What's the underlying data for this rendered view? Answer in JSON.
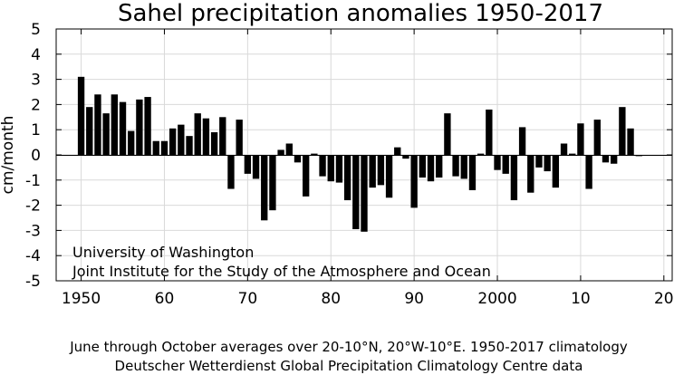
{
  "chart_data": {
    "type": "bar",
    "title": "Sahel precipitation anomalies 1950-2017",
    "ylabel": "cm/month",
    "xlabel": "",
    "xlim": [
      1947,
      2021
    ],
    "ylim": [
      -5,
      5
    ],
    "grid": true,
    "y_ticks": [
      -5,
      -4,
      -3,
      -2,
      -1,
      0,
      1,
      2,
      3,
      4,
      5
    ],
    "y_tick_labels": [
      "-5",
      "-4",
      "-3",
      "-2",
      "-1",
      "0",
      "1",
      "2",
      "3",
      "4",
      "5"
    ],
    "x_ticks": [
      1950,
      1960,
      1970,
      1980,
      1990,
      2000,
      2010,
      2020
    ],
    "x_tick_labels": [
      "1950",
      "60",
      "70",
      "80",
      "90",
      "2000",
      "10",
      "20"
    ],
    "bar_color": "#000000",
    "x": [
      1950,
      1951,
      1952,
      1953,
      1954,
      1955,
      1956,
      1957,
      1958,
      1959,
      1960,
      1961,
      1962,
      1963,
      1964,
      1965,
      1966,
      1967,
      1968,
      1969,
      1970,
      1971,
      1972,
      1973,
      1974,
      1975,
      1976,
      1977,
      1978,
      1979,
      1980,
      1981,
      1982,
      1983,
      1984,
      1985,
      1986,
      1987,
      1988,
      1989,
      1990,
      1991,
      1992,
      1993,
      1994,
      1995,
      1996,
      1997,
      1998,
      1999,
      2000,
      2001,
      2002,
      2003,
      2004,
      2005,
      2006,
      2007,
      2008,
      2009,
      2010,
      2011,
      2012,
      2013,
      2014,
      2015,
      2016,
      2017
    ],
    "values": [
      3.1,
      1.9,
      2.4,
      1.65,
      2.4,
      2.1,
      0.95,
      2.2,
      2.3,
      0.55,
      0.55,
      1.05,
      1.2,
      0.75,
      1.65,
      1.45,
      0.9,
      1.5,
      -1.35,
      1.4,
      -0.75,
      -0.95,
      -2.6,
      -2.2,
      0.2,
      0.45,
      -0.3,
      -1.65,
      0.05,
      -0.85,
      -1.05,
      -1.1,
      -1.8,
      -2.95,
      -3.05,
      -1.3,
      -1.2,
      -1.7,
      0.3,
      -0.15,
      -2.1,
      -0.9,
      -1.05,
      -0.9,
      1.65,
      -0.85,
      -0.95,
      -1.4,
      0.05,
      1.8,
      -0.6,
      -0.75,
      -1.8,
      1.1,
      -1.5,
      -0.5,
      -0.65,
      -1.3,
      0.45,
      0.05,
      1.25,
      -1.35,
      1.4,
      -0.3,
      -0.35,
      1.9,
      1.05,
      -0.05
    ],
    "annotations": [
      "University of Washington",
      "Joint Institute for the Study of the Atmosphere and Ocean"
    ],
    "footer_lines": [
      "June through October averages over 20-10°N, 20°W-10°E.  1950-2017 climatology",
      "Deutscher Wetterdienst Global Precipitation Climatology Centre data"
    ]
  }
}
